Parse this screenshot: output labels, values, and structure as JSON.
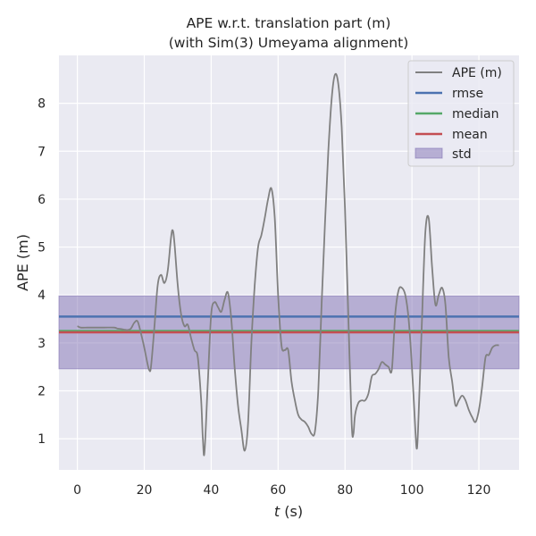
{
  "chart_data": {
    "type": "line",
    "title": "APE w.r.t. translation part (m)",
    "subtitle": "(with Sim(3) Umeyama alignment)",
    "xlabel_var": "t",
    "xlabel_unit": "(s)",
    "ylabel": "APE (m)",
    "xlim": [
      -5.5,
      132
    ],
    "ylim": [
      0.35,
      9.0
    ],
    "xticks": [
      0,
      20,
      40,
      60,
      80,
      100,
      120
    ],
    "yticks": [
      1,
      2,
      3,
      4,
      5,
      6,
      7,
      8
    ],
    "grid": true,
    "legend_position": "top-right",
    "colors": {
      "background": "#eaeaf2",
      "grid": "#ffffff",
      "ape": "#808080",
      "rmse": "#4c72b0",
      "median": "#55a868",
      "mean": "#c44e52",
      "std_fill": "#8172b3"
    },
    "legend": [
      "APE (m)",
      "rmse",
      "median",
      "mean",
      "std"
    ],
    "stats": {
      "rmse": 3.55,
      "median": 3.25,
      "mean": 3.22,
      "std": 0.76,
      "std_band": [
        2.46,
        3.98
      ]
    },
    "series": [
      {
        "name": "APE (m)",
        "x": [
          0,
          1,
          3,
          5,
          8,
          11,
          12,
          13,
          15,
          16,
          17,
          18,
          19,
          20,
          21,
          21.5,
          22,
          23,
          24,
          25,
          26,
          27,
          28,
          28.5,
          29,
          30,
          31,
          32,
          33,
          34,
          35,
          36,
          37,
          37.5,
          38,
          39,
          40,
          41,
          42,
          43,
          44,
          45,
          46,
          47,
          48,
          49,
          50,
          51,
          52,
          53,
          54,
          55,
          56,
          57,
          58,
          59,
          60,
          61,
          62,
          63,
          64,
          65,
          66,
          67,
          68,
          69,
          70,
          71,
          72,
          73,
          74,
          75,
          76,
          77,
          78,
          79,
          80,
          81,
          82,
          82.5,
          83,
          84,
          85,
          86,
          87,
          88,
          89,
          90,
          91,
          92,
          93,
          94,
          95,
          96,
          97,
          98,
          99,
          100,
          101,
          101.5,
          102,
          103,
          104,
          105,
          106,
          107,
          108,
          109,
          110,
          111,
          112,
          113,
          114,
          115,
          116,
          117,
          118,
          119,
          120,
          121,
          122,
          123,
          124,
          125,
          126
        ],
        "values": [
          3.35,
          3.32,
          3.32,
          3.32,
          3.32,
          3.32,
          3.3,
          3.29,
          3.27,
          3.3,
          3.42,
          3.45,
          3.2,
          2.9,
          2.55,
          2.43,
          2.5,
          3.3,
          4.2,
          4.42,
          4.25,
          4.5,
          5.2,
          5.35,
          5.1,
          4.2,
          3.6,
          3.35,
          3.38,
          3.1,
          2.85,
          2.7,
          1.8,
          1.0,
          0.72,
          2.2,
          3.6,
          3.85,
          3.75,
          3.65,
          3.9,
          4.05,
          3.5,
          2.5,
          1.7,
          1.2,
          0.75,
          1.3,
          3.0,
          4.2,
          5.0,
          5.25,
          5.6,
          6.0,
          6.22,
          5.6,
          4.0,
          2.95,
          2.85,
          2.85,
          2.2,
          1.8,
          1.5,
          1.4,
          1.35,
          1.25,
          1.1,
          1.15,
          2.0,
          3.8,
          5.5,
          7.0,
          8.1,
          8.6,
          8.4,
          7.5,
          5.8,
          3.5,
          1.3,
          1.1,
          1.5,
          1.75,
          1.8,
          1.8,
          1.95,
          2.3,
          2.35,
          2.45,
          2.6,
          2.55,
          2.5,
          2.45,
          3.6,
          4.1,
          4.15,
          4.0,
          3.5,
          2.5,
          1.2,
          0.8,
          1.5,
          3.5,
          5.3,
          5.6,
          4.6,
          3.8,
          4.0,
          4.15,
          3.8,
          2.7,
          2.2,
          1.7,
          1.8,
          1.9,
          1.8,
          1.6,
          1.45,
          1.35,
          1.6,
          2.1,
          2.7,
          2.75,
          2.9,
          2.95,
          2.95
        ]
      }
    ]
  }
}
